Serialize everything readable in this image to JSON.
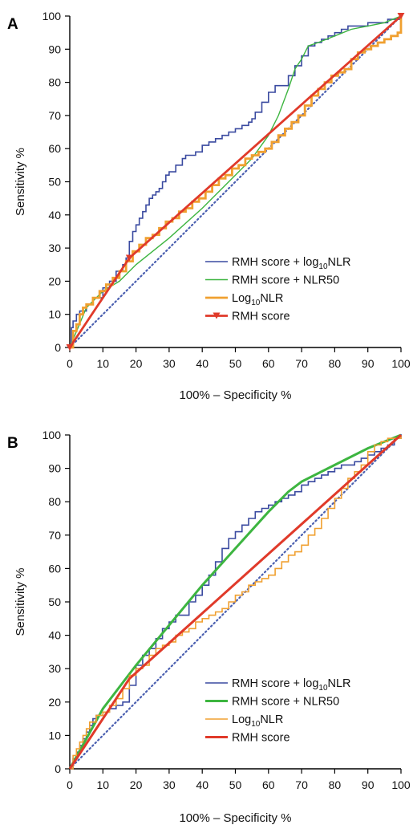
{
  "chart_data": [
    {
      "panel_label": "A",
      "type": "line",
      "xlabel": "100% – Specificity %",
      "ylabel": "Sensitivity %",
      "xlim": [
        0,
        100
      ],
      "ylim": [
        0,
        100
      ],
      "xticks": [
        0,
        10,
        20,
        30,
        40,
        50,
        60,
        70,
        80,
        90,
        100
      ],
      "yticks": [
        0,
        10,
        20,
        30,
        40,
        50,
        60,
        70,
        80,
        90,
        100
      ],
      "legend_position": "bottom-right",
      "reference_line": {
        "x": [
          0,
          100
        ],
        "y": [
          0,
          100
        ],
        "style": "dotted",
        "color": "#4a5fb0"
      },
      "series": [
        {
          "name": "RMH score + log10NLR",
          "legend_main": "RMH score + log",
          "legend_sub": "10",
          "legend_tail": "NLR",
          "color": "#3a4aa0",
          "stroke_width": 1.6,
          "step": true,
          "x": [
            0,
            0.5,
            1,
            2,
            3,
            5,
            7,
            10,
            12,
            14,
            16,
            17,
            18,
            19,
            20,
            21,
            22,
            23,
            24,
            25,
            26,
            27,
            28,
            29,
            30,
            32,
            34,
            35,
            36,
            38,
            40,
            42,
            44,
            46,
            48,
            50,
            52,
            54,
            55,
            56,
            58,
            60,
            62,
            64,
            66,
            68,
            70,
            72,
            74,
            76,
            78,
            80,
            82,
            84,
            86,
            88,
            90,
            92,
            94,
            96,
            98,
            100
          ],
          "y": [
            0,
            6,
            8,
            10,
            11,
            13,
            15,
            18,
            20,
            23,
            25,
            27,
            32,
            35,
            37,
            39,
            41,
            43,
            45,
            46,
            47,
            48,
            50,
            52,
            53,
            55,
            57,
            58,
            58,
            59,
            61,
            62,
            63,
            64,
            65,
            66,
            67,
            68,
            69,
            71,
            74,
            77,
            79,
            79,
            82,
            85,
            88,
            91,
            92,
            93,
            94,
            95,
            96,
            97,
            97,
            97,
            98,
            98,
            98,
            99,
            99,
            100
          ]
        },
        {
          "name": "RMH score + NLR50",
          "legend_main": "RMH score + NLR50",
          "legend_sub": "",
          "legend_tail": "",
          "color": "#3db540",
          "stroke_width": 1.4,
          "step": false,
          "x": [
            0,
            5,
            10,
            15,
            20,
            30,
            40,
            50,
            55,
            60,
            63,
            66,
            68,
            70,
            72,
            75,
            80,
            85,
            90,
            95,
            100
          ],
          "y": [
            0,
            12,
            17,
            20,
            25,
            33,
            42,
            52,
            57,
            64,
            70,
            78,
            84,
            87,
            91,
            92,
            94,
            96,
            97,
            98,
            100
          ]
        },
        {
          "name": "Log10NLR",
          "legend_main": "Log",
          "legend_sub": "10",
          "legend_tail": "NLR",
          "color": "#f0a030",
          "stroke_width": 2.8,
          "step": true,
          "x": [
            0,
            1,
            2,
            3,
            4,
            5,
            7,
            9,
            11,
            13,
            15,
            17,
            19,
            21,
            23,
            25,
            27,
            29,
            31,
            33,
            35,
            37,
            39,
            41,
            43,
            45,
            47,
            49,
            51,
            53,
            55,
            57,
            59,
            61,
            63,
            65,
            67,
            69,
            71,
            73,
            75,
            77,
            79,
            81,
            83,
            85,
            87,
            89,
            91,
            93,
            95,
            97,
            99,
            100
          ],
          "y": [
            0,
            5,
            7,
            10,
            12,
            13,
            15,
            17,
            19,
            21,
            23,
            26,
            29,
            31,
            33,
            34,
            36,
            38,
            39,
            41,
            42,
            44,
            45,
            47,
            49,
            51,
            52,
            54,
            55,
            57,
            58,
            59,
            60,
            62,
            64,
            66,
            68,
            70,
            73,
            76,
            78,
            80,
            82,
            83,
            84,
            87,
            89,
            90,
            91,
            92,
            93,
            94,
            95,
            100
          ]
        },
        {
          "name": "RMH score",
          "legend_main": "RMH score",
          "legend_sub": "",
          "legend_tail": "",
          "color": "#e03a2a",
          "stroke_width": 2.8,
          "step": false,
          "marker": "triangle-down",
          "x": [
            0,
            18,
            100
          ],
          "y": [
            0,
            27,
            100
          ]
        }
      ]
    },
    {
      "panel_label": "B",
      "type": "line",
      "xlabel": "100% – Specificity %",
      "ylabel": "Sensitivity %",
      "xlim": [
        0,
        100
      ],
      "ylim": [
        0,
        100
      ],
      "xticks": [
        0,
        10,
        20,
        30,
        40,
        50,
        60,
        70,
        80,
        90,
        100
      ],
      "yticks": [
        0,
        10,
        20,
        30,
        40,
        50,
        60,
        70,
        80,
        90,
        100
      ],
      "legend_position": "bottom-right",
      "reference_line": {
        "x": [
          0,
          100
        ],
        "y": [
          0,
          100
        ],
        "style": "dotted",
        "color": "#4a5fb0"
      },
      "series": [
        {
          "name": "RMH score + log10NLR",
          "legend_main": "RMH score + log",
          "legend_sub": "10",
          "legend_tail": "NLR",
          "color": "#3a4aa0",
          "stroke_width": 1.6,
          "step": true,
          "x": [
            0,
            1,
            2,
            3,
            4,
            5,
            6,
            7,
            8,
            10,
            12,
            14,
            16,
            18,
            20,
            22,
            24,
            26,
            28,
            30,
            32,
            34,
            36,
            38,
            40,
            42,
            44,
            46,
            48,
            50,
            52,
            54,
            56,
            58,
            60,
            62,
            64,
            66,
            68,
            70,
            72,
            74,
            76,
            78,
            80,
            82,
            84,
            86,
            88,
            90,
            92,
            94,
            96,
            98,
            100
          ],
          "y": [
            0,
            3,
            5,
            7,
            9,
            11,
            13,
            15,
            16,
            17,
            18,
            19,
            20,
            25,
            31,
            34,
            36,
            39,
            42,
            44,
            46,
            46,
            50,
            52,
            55,
            58,
            62,
            66,
            69,
            71,
            73,
            75,
            77,
            78,
            79,
            80,
            81,
            82,
            83,
            85,
            86,
            87,
            88,
            89,
            90,
            91,
            91,
            92,
            93,
            94,
            95,
            96,
            97,
            99,
            100
          ]
        },
        {
          "name": "RMH score + NLR50",
          "legend_main": "RMH score + NLR50",
          "legend_sub": "",
          "legend_tail": "",
          "color": "#3db540",
          "stroke_width": 3,
          "step": false,
          "x": [
            0,
            10,
            20,
            30,
            40,
            50,
            60,
            66,
            70,
            80,
            90,
            100
          ],
          "y": [
            0,
            18,
            31,
            43,
            55,
            66,
            77,
            83,
            86,
            91,
            96,
            100
          ]
        },
        {
          "name": "Log10NLR",
          "legend_main": "Log",
          "legend_sub": "10",
          "legend_tail": "NLR",
          "color": "#f0a030",
          "stroke_width": 1.6,
          "step": true,
          "x": [
            0,
            1,
            2,
            3,
            4,
            5,
            6,
            8,
            10,
            12,
            14,
            16,
            18,
            20,
            22,
            24,
            26,
            28,
            30,
            32,
            34,
            36,
            38,
            40,
            42,
            44,
            46,
            48,
            50,
            52,
            54,
            56,
            58,
            60,
            62,
            64,
            66,
            68,
            70,
            72,
            74,
            76,
            78,
            80,
            82,
            84,
            86,
            88,
            90,
            92,
            94,
            96,
            98,
            100
          ],
          "y": [
            0,
            4,
            6,
            8,
            10,
            12,
            14,
            16,
            17,
            19,
            21,
            24,
            28,
            30,
            31,
            34,
            36,
            37,
            38,
            40,
            41,
            42,
            44,
            45,
            46,
            47,
            48,
            50,
            52,
            53,
            55,
            56,
            57,
            58,
            60,
            62,
            64,
            65,
            67,
            70,
            72,
            75,
            78,
            81,
            84,
            87,
            89,
            91,
            95,
            97,
            98,
            99,
            99,
            100
          ]
        },
        {
          "name": "RMH score",
          "legend_main": "RMH score",
          "legend_sub": "",
          "legend_tail": "",
          "color": "#e03a2a",
          "stroke_width": 3,
          "step": false,
          "x": [
            0,
            18,
            100
          ],
          "y": [
            0,
            27,
            100
          ]
        }
      ]
    }
  ]
}
